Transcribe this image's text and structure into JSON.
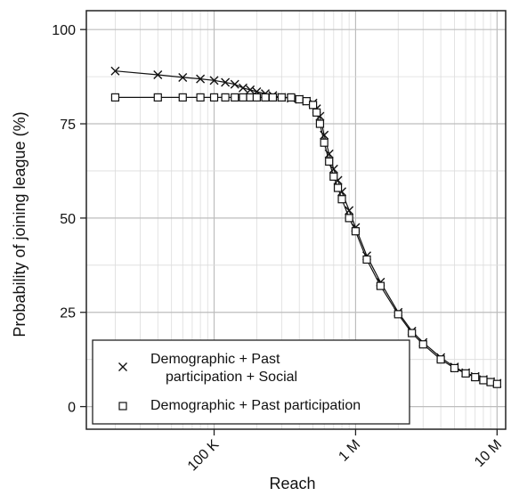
{
  "chart_data": {
    "type": "scatter",
    "xlabel": "Reach",
    "ylabel": "Probability of joining league (%)",
    "x_scale": "log",
    "xlim": [
      12500,
      11500000
    ],
    "ylim": [
      -6,
      105
    ],
    "x_ticks": [
      {
        "value": 100000,
        "label": "100 K"
      },
      {
        "value": 1000000,
        "label": "1 M"
      },
      {
        "value": 10000000,
        "label": "10 M"
      }
    ],
    "y_ticks": [
      {
        "value": 0,
        "label": "0"
      },
      {
        "value": 25,
        "label": "25"
      },
      {
        "value": 50,
        "label": "50"
      },
      {
        "value": 75,
        "label": "75"
      },
      {
        "value": 100,
        "label": "100"
      }
    ],
    "grid": true,
    "legend_position": "bottom-left",
    "legend": [
      {
        "marker": "x",
        "lines": [
          "Demographic + Past",
          "participation + Social"
        ]
      },
      {
        "marker": "square",
        "lines": [
          "Demographic + Past participation"
        ]
      }
    ],
    "series": [
      {
        "marker": "x",
        "x": [
          20000,
          40000,
          60000,
          80000,
          100000,
          120000,
          140000,
          160000,
          180000,
          200000,
          230000,
          260000,
          300000,
          350000,
          400000,
          450000,
          500000,
          530000,
          560000,
          600000,
          650000,
          700000,
          750000,
          800000,
          900000,
          1000000,
          1200000,
          1500000,
          2000000,
          2500000,
          3000000,
          4000000,
          5000000,
          6000000,
          7000000,
          8000000,
          9000000,
          10000000
        ],
        "y": [
          89,
          88,
          87.3,
          86.9,
          86.5,
          86,
          85.5,
          84.5,
          84,
          83.5,
          83,
          82.5,
          82,
          81.8,
          81.5,
          81,
          80.5,
          79,
          77,
          72,
          67,
          63,
          60,
          57,
          52,
          47.5,
          40,
          33,
          25,
          20,
          17,
          13,
          10.5,
          9,
          8,
          7.2,
          6.6,
          6.2
        ]
      },
      {
        "marker": "square",
        "x": [
          20000,
          40000,
          60000,
          80000,
          100000,
          120000,
          140000,
          160000,
          180000,
          200000,
          230000,
          260000,
          300000,
          350000,
          400000,
          450000,
          500000,
          530000,
          560000,
          600000,
          650000,
          700000,
          750000,
          800000,
          900000,
          1000000,
          1200000,
          1500000,
          2000000,
          2500000,
          3000000,
          4000000,
          5000000,
          6000000,
          7000000,
          8000000,
          9000000,
          10000000
        ],
        "y": [
          82,
          82,
          82,
          82,
          82,
          82,
          82,
          82,
          82,
          82,
          82,
          82,
          82,
          82,
          81.5,
          81,
          80,
          78,
          75,
          70,
          65,
          61,
          58,
          55,
          50,
          46.5,
          39,
          32,
          24.5,
          19.5,
          16.5,
          12.5,
          10.2,
          8.8,
          7.8,
          7,
          6.5,
          6
        ]
      }
    ]
  }
}
